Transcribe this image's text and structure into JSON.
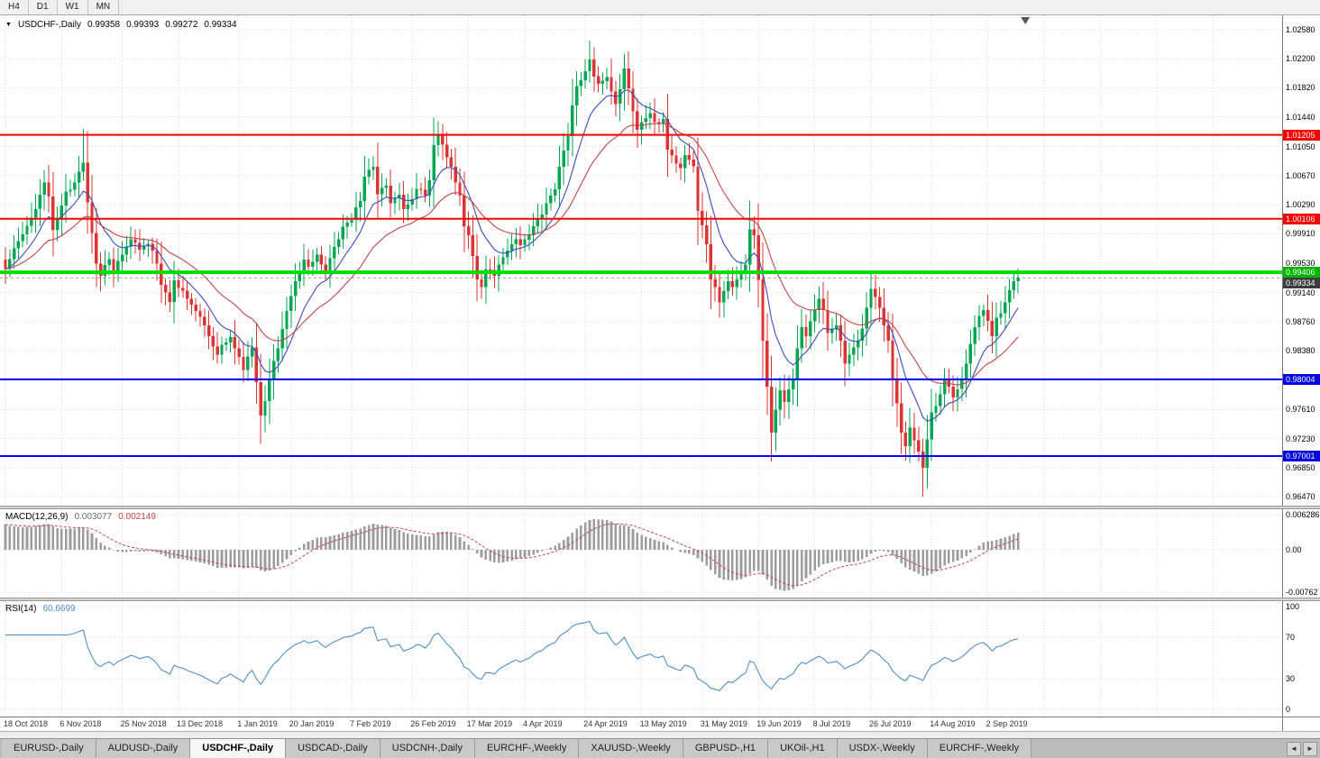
{
  "toolbar": {
    "timeframes": [
      "H4",
      "D1",
      "W1",
      "MN"
    ]
  },
  "icons": {
    "chart_menu": "▼",
    "tab_scroll_left": "◄",
    "tab_scroll_right": "►"
  },
  "chart": {
    "symbol": "USDCHF-,Daily",
    "ohlc": {
      "open": "0.99358",
      "high": "0.99393",
      "low": "0.99272",
      "close": "0.99334"
    }
  },
  "price_axis": {
    "ticks": [
      "1.02580",
      "1.02200",
      "1.01820",
      "1.01440",
      "1.01050",
      "1.00670",
      "1.00290",
      "0.99910",
      "0.99530",
      "0.99140",
      "0.98760",
      "0.98380",
      "0.97610",
      "0.97230",
      "0.96850",
      "0.96470"
    ],
    "tags": [
      {
        "label": "1.01205",
        "bg": "#FF0000"
      },
      {
        "label": "1.00106",
        "bg": "#FF0000"
      },
      {
        "label": "0.99406",
        "bg": "#00B400"
      },
      {
        "label": "0.99334",
        "bg": "#3C3C3C"
      },
      {
        "label": "0.98004",
        "bg": "#0000E6"
      },
      {
        "label": "0.97001",
        "bg": "#0000E6"
      }
    ]
  },
  "macd_panel": {
    "label": "MACD(12,26,9)",
    "main_value": "0.003077",
    "signal_value": "0.002149",
    "ticks": [
      "0.006286",
      "0.00",
      "-0.00762"
    ]
  },
  "rsi_panel": {
    "label": "RSI(14)",
    "value": "60.6699",
    "ticks": [
      "100",
      "70",
      "30",
      "0"
    ]
  },
  "tabs": {
    "items": [
      "EURUSD-,Daily",
      "AUDUSD-,Daily",
      "USDCHF-,Daily",
      "USDCAD-,Daily",
      "USDCNH-,Daily",
      "EURCHF-,Weekly",
      "XAUUSD-,Weekly",
      "GBPUSD-,H1",
      "UKOil-,H1",
      "USDX-,Weekly",
      "EURCHF-,Weekly"
    ],
    "active_index": 2
  },
  "colors": {
    "up": "#00A651",
    "down": "#DE3333",
    "grid": "#DBDBDB",
    "macd_bar": "#9C9C9C",
    "macd_signal": "#CC4444",
    "rsi": "#4D8FCC"
  },
  "chart_data": {
    "type": "candlestick",
    "symbol": "USDCHF",
    "timeframe": "Daily",
    "n_candles": 235,
    "y_range": [
      0.9647,
      1.0258
    ],
    "y_ticks": [
      1.0258,
      1.022,
      1.0182,
      1.0144,
      1.0105,
      1.0067,
      1.0029,
      0.9991,
      0.9953,
      0.9914,
      0.9876,
      0.9838,
      0.98,
      0.9761,
      0.9723,
      0.9685,
      0.9647
    ],
    "hlines": [
      {
        "price": 1.01205,
        "color": "#FF0000",
        "width": 2
      },
      {
        "price": 1.00106,
        "color": "#FF0000",
        "width": 2
      },
      {
        "price": 0.99406,
        "color": "#00DD00",
        "width": 4
      },
      {
        "price": 0.98004,
        "color": "#0000FF",
        "width": 2
      },
      {
        "price": 0.97001,
        "color": "#0000FF",
        "width": 2
      }
    ],
    "current_price": 0.99334,
    "last_ohlc": {
      "open": 0.99358,
      "high": 0.99393,
      "low": 0.99272,
      "close": 0.99334
    },
    "ma": [
      {
        "period": 10,
        "color": "#3A4CC0"
      },
      {
        "period": 26,
        "color": "#C54545"
      }
    ],
    "x_labels": [
      {
        "label": "18 Oct 2018",
        "i": 0
      },
      {
        "label": "6 Nov 2018",
        "i": 13
      },
      {
        "label": "25 Nov 2018",
        "i": 27
      },
      {
        "label": "13 Dec 2018",
        "i": 40
      },
      {
        "label": "1 Jan 2019",
        "i": 54
      },
      {
        "label": "20 Jan 2019",
        "i": 66
      },
      {
        "label": "7 Feb 2019",
        "i": 80
      },
      {
        "label": "26 Feb 2019",
        "i": 94
      },
      {
        "label": "17 Mar 2019",
        "i": 107
      },
      {
        "label": "4 Apr 2019",
        "i": 120
      },
      {
        "label": "24 Apr 2019",
        "i": 134
      },
      {
        "label": "13 May 2019",
        "i": 147
      },
      {
        "label": "31 May 2019",
        "i": 161
      },
      {
        "label": "19 Jun 2019",
        "i": 174
      },
      {
        "label": "8 Jul 2019",
        "i": 187
      },
      {
        "label": "26 Jul 2019",
        "i": 200
      },
      {
        "label": "14 Aug 2019",
        "i": 214
      },
      {
        "label": "2 Sep 2019",
        "i": 227
      }
    ],
    "close_anchors": [
      [
        0,
        0.9945
      ],
      [
        2,
        0.9972
      ],
      [
        4,
        0.999
      ],
      [
        6,
        1.0012
      ],
      [
        8,
        1.0042
      ],
      [
        9,
        1.0058
      ],
      [
        10,
        1.004
      ],
      [
        11,
        0.9996
      ],
      [
        12,
        1.001
      ],
      [
        13,
        1.0028
      ],
      [
        14,
        1.0046
      ],
      [
        16,
        1.0058
      ],
      [
        17,
        1.0072
      ],
      [
        18,
        1.0084
      ],
      [
        19,
        1.0032
      ],
      [
        20,
        0.9992
      ],
      [
        21,
        0.9952
      ],
      [
        22,
        0.9936
      ],
      [
        23,
        0.995
      ],
      [
        24,
        0.9958
      ],
      [
        25,
        0.994
      ],
      [
        27,
        0.9964
      ],
      [
        29,
        0.9984
      ],
      [
        31,
        0.997
      ],
      [
        33,
        0.9978
      ],
      [
        35,
        0.9952
      ],
      [
        36,
        0.9924
      ],
      [
        38,
        0.9902
      ],
      [
        39,
        0.993
      ],
      [
        40,
        0.992
      ],
      [
        42,
        0.9906
      ],
      [
        44,
        0.989
      ],
      [
        46,
        0.9871
      ],
      [
        47,
        0.9857
      ],
      [
        49,
        0.9833
      ],
      [
        50,
        0.9846
      ],
      [
        52,
        0.9856
      ],
      [
        53,
        0.9841
      ],
      [
        54,
        0.983
      ],
      [
        55,
        0.9813
      ],
      [
        57,
        0.9842
      ],
      [
        58,
        0.9797
      ],
      [
        59,
        0.9753
      ],
      [
        60,
        0.9772
      ],
      [
        61,
        0.9801
      ],
      [
        63,
        0.9841
      ],
      [
        65,
        0.989
      ],
      [
        67,
        0.9929
      ],
      [
        69,
        0.9957
      ],
      [
        70,
        0.9948
      ],
      [
        72,
        0.9964
      ],
      [
        74,
        0.9941
      ],
      [
        75,
        0.9959
      ],
      [
        77,
        0.9984
      ],
      [
        78,
        1.0
      ],
      [
        80,
        1.0009
      ],
      [
        82,
        1.0034
      ],
      [
        83,
        1.0066
      ],
      [
        85,
        1.0079
      ],
      [
        86,
        1.0043
      ],
      [
        88,
        1.0054
      ],
      [
        89,
        1.0031
      ],
      [
        91,
        1.0042
      ],
      [
        92,
        1.0023
      ],
      [
        94,
        1.0036
      ],
      [
        95,
        1.005
      ],
      [
        97,
        1.0041
      ],
      [
        98,
        1.0061
      ],
      [
        99,
        1.0107
      ],
      [
        100,
        1.0121
      ],
      [
        102,
        1.0091
      ],
      [
        103,
        1.0079
      ],
      [
        105,
        1.0041
      ],
      [
        106,
        1.0001
      ],
      [
        107,
        0.9989
      ],
      [
        109,
        0.9931
      ],
      [
        110,
        0.9921
      ],
      [
        111,
        0.9944
      ],
      [
        113,
        0.9936
      ],
      [
        114,
        0.9951
      ],
      [
        116,
        0.9969
      ],
      [
        118,
        0.9984
      ],
      [
        119,
        0.9976
      ],
      [
        121,
        0.9989
      ],
      [
        122,
        1.0001
      ],
      [
        124,
        1.0016
      ],
      [
        125,
        1.0031
      ],
      [
        127,
        1.0049
      ],
      [
        128,
        1.0079
      ],
      [
        130,
        1.0119
      ],
      [
        131,
        1.0159
      ],
      [
        132,
        1.0184
      ],
      [
        134,
        1.0204
      ],
      [
        135,
        1.0219
      ],
      [
        136,
        1.0197
      ],
      [
        137,
        1.0187
      ],
      [
        139,
        1.0196
      ],
      [
        140,
        1.0177
      ],
      [
        141,
        1.0161
      ],
      [
        143,
        1.0207
      ],
      [
        144,
        1.0181
      ],
      [
        145,
        1.0151
      ],
      [
        146,
        1.0127
      ],
      [
        147,
        1.0137
      ],
      [
        149,
        1.0149
      ],
      [
        150,
        1.0137
      ],
      [
        152,
        1.0141
      ],
      [
        153,
        1.0101
      ],
      [
        155,
        1.0083
      ],
      [
        156,
        1.0077
      ],
      [
        157,
        1.0094
      ],
      [
        159,
        1.0079
      ],
      [
        160,
        1.0021
      ],
      [
        162,
        0.9977
      ],
      [
        163,
        0.9931
      ],
      [
        164,
        0.9921
      ],
      [
        165,
        0.9901
      ],
      [
        167,
        0.9929
      ],
      [
        168,
        0.9921
      ],
      [
        169,
        0.9931
      ],
      [
        171,
        0.9951
      ],
      [
        172,
        0.9997
      ],
      [
        173,
        0.9989
      ],
      [
        174,
        0.9931
      ],
      [
        175,
        0.9851
      ],
      [
        176,
        0.9791
      ],
      [
        177,
        0.9731
      ],
      [
        178,
        0.9761
      ],
      [
        179,
        0.9786
      ],
      [
        180,
        0.9771
      ],
      [
        182,
        0.9801
      ],
      [
        183,
        0.9841
      ],
      [
        184,
        0.9869
      ],
      [
        185,
        0.9857
      ],
      [
        187,
        0.9891
      ],
      [
        188,
        0.9906
      ],
      [
        189,
        0.9891
      ],
      [
        190,
        0.9861
      ],
      [
        192,
        0.9871
      ],
      [
        193,
        0.9851
      ],
      [
        194,
        0.9821
      ],
      [
        195,
        0.9833
      ],
      [
        197,
        0.9851
      ],
      [
        198,
        0.9867
      ],
      [
        199,
        0.9894
      ],
      [
        200,
        0.9919
      ],
      [
        202,
        0.9894
      ],
      [
        203,
        0.9871
      ],
      [
        204,
        0.9851
      ],
      [
        205,
        0.9801
      ],
      [
        207,
        0.9731
      ],
      [
        208,
        0.9713
      ],
      [
        209,
        0.9737
      ],
      [
        210,
        0.9721
      ],
      [
        212,
        0.9685
      ],
      [
        213,
        0.9722
      ],
      [
        214,
        0.9757
      ],
      [
        216,
        0.9781
      ],
      [
        217,
        0.9801
      ],
      [
        218,
        0.9791
      ],
      [
        219,
        0.9777
      ],
      [
        221,
        0.9801
      ],
      [
        222,
        0.9821
      ],
      [
        223,
        0.9847
      ],
      [
        224,
        0.9869
      ],
      [
        226,
        0.9891
      ],
      [
        227,
        0.9877
      ],
      [
        228,
        0.9857
      ],
      [
        229,
        0.9881
      ],
      [
        231,
        0.9901
      ],
      [
        232,
        0.9917
      ],
      [
        233,
        0.9929
      ],
      [
        234,
        0.99334
      ]
    ],
    "spikes": [
      [
        18,
        "h",
        1.0128
      ],
      [
        100,
        "h",
        1.0128
      ],
      [
        135,
        "h",
        1.0244
      ],
      [
        143,
        "h",
        1.0225
      ],
      [
        172,
        "h",
        1.001
      ],
      [
        200,
        "h",
        0.9938
      ],
      [
        59,
        "l",
        0.9716
      ],
      [
        177,
        "l",
        0.9696
      ],
      [
        212,
        "l",
        0.9647
      ]
    ],
    "macd": {
      "fast": 12,
      "slow": 26,
      "signal": 9,
      "last_main": 0.003077,
      "last_signal": 0.002149,
      "y_ticks": [
        0.006286,
        0,
        -0.00762
      ]
    },
    "rsi": {
      "period": 14,
      "last": 60.6699,
      "levels": [
        70,
        30
      ],
      "y_ticks": [
        100,
        70,
        30,
        0
      ]
    }
  }
}
